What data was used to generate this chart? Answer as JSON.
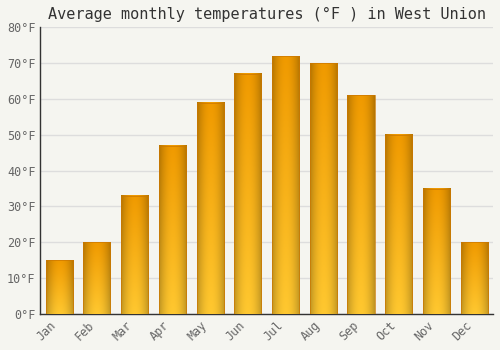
{
  "title": "Average monthly temperatures (°F ) in West Union",
  "months": [
    "Jan",
    "Feb",
    "Mar",
    "Apr",
    "May",
    "Jun",
    "Jul",
    "Aug",
    "Sep",
    "Oct",
    "Nov",
    "Dec"
  ],
  "values": [
    15,
    20,
    33,
    47,
    59,
    67,
    72,
    70,
    61,
    50,
    35,
    20
  ],
  "bar_color_main": "#FFAA00",
  "bar_color_light": "#FFD040",
  "bar_edge_color": "#E08000",
  "ylim": [
    0,
    80
  ],
  "yticks": [
    0,
    10,
    20,
    30,
    40,
    50,
    60,
    70,
    80
  ],
  "ytick_labels": [
    "0°F",
    "10°F",
    "20°F",
    "30°F",
    "40°F",
    "50°F",
    "60°F",
    "70°F",
    "80°F"
  ],
  "background_color": "#F5F5F0",
  "grid_color": "#DDDDDD",
  "title_fontsize": 11,
  "tick_fontsize": 8.5,
  "tick_color": "#666666",
  "title_color": "#333333",
  "bar_width": 0.72
}
